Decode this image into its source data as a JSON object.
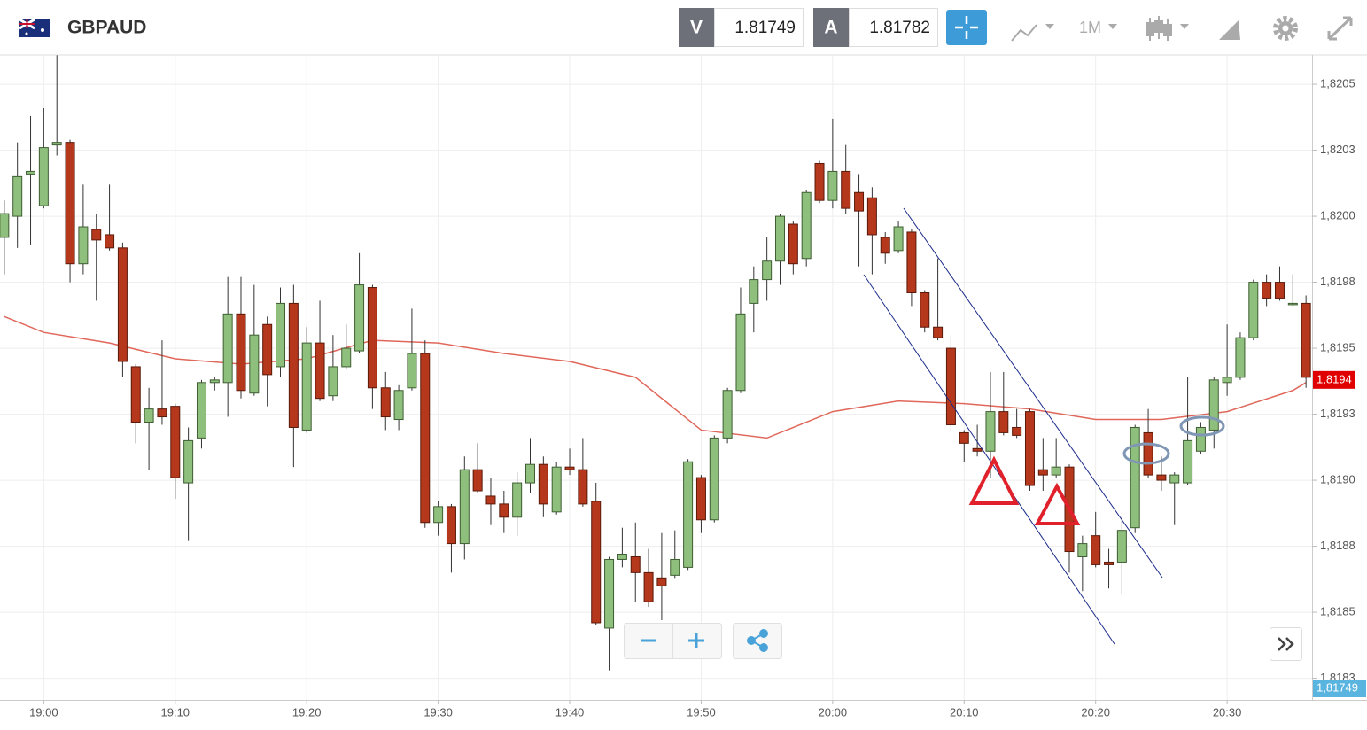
{
  "header": {
    "symbol": "GBPAUD",
    "bid_label": "V",
    "bid": "1.81749",
    "ask_label": "A",
    "ask": "1.81782",
    "timeframe": "1M"
  },
  "chart_data": {
    "type": "candlestick",
    "x": [
      "18:57",
      "18:58",
      "18:59",
      "19:00",
      "19:01",
      "19:02",
      "19:03",
      "19:04",
      "19:05",
      "19:06",
      "19:07",
      "19:08",
      "19:09",
      "19:10",
      "19:11",
      "19:12",
      "19:13",
      "19:14",
      "19:15",
      "19:16",
      "19:17",
      "19:18",
      "19:19",
      "19:20",
      "19:21",
      "19:22",
      "19:23",
      "19:24",
      "19:25",
      "19:26",
      "19:27",
      "19:28",
      "19:29",
      "19:30",
      "19:31",
      "19:32",
      "19:33",
      "19:34",
      "19:35",
      "19:36",
      "19:37",
      "19:38",
      "19:39",
      "19:40",
      "19:41",
      "19:42",
      "19:43",
      "19:44",
      "19:45",
      "19:46",
      "19:47",
      "19:48",
      "19:49",
      "19:50",
      "19:51",
      "19:52",
      "19:53",
      "19:54",
      "19:55",
      "19:56",
      "19:57",
      "19:58",
      "19:59",
      "20:00",
      "20:01",
      "20:02",
      "20:03",
      "20:04",
      "20:05",
      "20:06",
      "20:07",
      "20:08",
      "20:09",
      "20:10",
      "20:11",
      "20:12",
      "20:13",
      "20:14",
      "20:15",
      "20:16",
      "20:17",
      "20:18",
      "20:19",
      "20:20",
      "20:21",
      "20:22",
      "20:23",
      "20:24",
      "20:25",
      "20:26",
      "20:27",
      "20:28",
      "20:29",
      "20:30",
      "20:31",
      "20:32",
      "20:33",
      "20:34",
      "20:35",
      "20:36"
    ],
    "open": [
      1.81992,
      1.82,
      1.82016,
      1.82004,
      1.82027,
      1.82028,
      1.81982,
      1.81995,
      1.81993,
      1.81988,
      1.81943,
      1.81922,
      1.81927,
      1.81928,
      1.81899,
      1.81916,
      1.81937,
      1.81937,
      1.81963,
      1.81933,
      1.81959,
      1.81943,
      1.81967,
      1.81919,
      1.81952,
      1.81932,
      1.81943,
      1.81949,
      1.81973,
      1.81935,
      1.81923,
      1.81935,
      1.81948,
      1.81884,
      1.8189,
      1.81876,
      1.81904,
      1.81894,
      1.81891,
      1.81886,
      1.81899,
      1.81906,
      1.81888,
      1.81905,
      1.81904,
      1.81892,
      1.81844,
      1.8187,
      1.81871,
      1.81865,
      1.81863,
      1.81864,
      1.81867,
      1.81901,
      1.81885,
      1.81916,
      1.81934,
      1.81967,
      1.81976,
      1.81983,
      1.81997,
      1.81984,
      1.8202,
      1.82006,
      1.82017,
      1.82009,
      1.82007,
      1.81992,
      1.81987,
      1.81994,
      1.81971,
      1.81958,
      1.8195,
      1.81918,
      1.81912,
      1.81911,
      1.81926,
      1.8192,
      1.81926,
      1.81904,
      1.81902,
      1.81905,
      1.81871,
      1.81879,
      1.81869,
      1.81869,
      1.81882,
      1.81918,
      1.81902,
      1.81899,
      1.81899,
      1.81911,
      1.81919,
      1.81937,
      1.81939,
      1.81954,
      1.81975,
      1.81975,
      1.81967,
      1.81967
    ],
    "high": [
      1.82006,
      1.82028,
      1.82038,
      1.82041,
      1.82061,
      1.82029,
      1.82012,
      1.82001,
      1.82012,
      1.8199,
      1.81944,
      1.81935,
      1.81953,
      1.81929,
      1.8192,
      1.81938,
      1.81939,
      1.81977,
      1.81977,
      1.81974,
      1.81962,
      1.81973,
      1.81974,
      1.81958,
      1.81968,
      1.81955,
      1.81959,
      1.81986,
      1.81974,
      1.81941,
      1.81936,
      1.81965,
      1.81953,
      1.81892,
      1.81891,
      1.81909,
      1.81914,
      1.81901,
      1.81896,
      1.81903,
      1.81916,
      1.81909,
      1.81907,
      1.81912,
      1.81916,
      1.81899,
      1.81871,
      1.81882,
      1.81884,
      1.81874,
      1.8188,
      1.81881,
      1.81908,
      1.81902,
      1.81917,
      1.81935,
      1.81973,
      1.81981,
      1.81992,
      1.82001,
      1.81998,
      1.8201,
      1.82021,
      1.82037,
      1.82027,
      1.82016,
      1.82011,
      1.81994,
      1.81998,
      1.81995,
      1.81972,
      1.81984,
      1.81955,
      1.81919,
      1.81921,
      1.81941,
      1.81941,
      1.81927,
      1.81927,
      1.81916,
      1.81916,
      1.81906,
      1.81879,
      1.81888,
      1.81874,
      1.81886,
      1.81921,
      1.81927,
      1.81909,
      1.81903,
      1.81939,
      1.81922,
      1.81939,
      1.81959,
      1.81956,
      1.81976,
      1.81978,
      1.81981,
      1.81978,
      1.8197
    ],
    "low": [
      1.81978,
      1.81988,
      1.81989,
      1.82003,
      1.82023,
      1.81975,
      1.81978,
      1.81968,
      1.81987,
      1.81939,
      1.81914,
      1.81904,
      1.81921,
      1.81893,
      1.81877,
      1.81912,
      1.81934,
      1.81924,
      1.81931,
      1.81932,
      1.81928,
      1.81939,
      1.81905,
      1.81918,
      1.8193,
      1.8193,
      1.81942,
      1.81948,
      1.81927,
      1.81919,
      1.81919,
      1.81934,
      1.81882,
      1.81879,
      1.81865,
      1.8187,
      1.81895,
      1.81883,
      1.8188,
      1.81879,
      1.81895,
      1.81886,
      1.81887,
      1.81902,
      1.8189,
      1.81845,
      1.81828,
      1.81867,
      1.81854,
      1.81852,
      1.81847,
      1.81863,
      1.81866,
      1.8188,
      1.81884,
      1.81914,
      1.81933,
      1.81956,
      1.81968,
      1.81974,
      1.81978,
      1.81981,
      1.82005,
      1.82003,
      1.82001,
      1.81981,
      1.81978,
      1.81982,
      1.81986,
      1.81966,
      1.81956,
      1.81953,
      1.81919,
      1.81907,
      1.81909,
      1.81901,
      1.81917,
      1.81916,
      1.81896,
      1.81896,
      1.81901,
      1.81865,
      1.81858,
      1.81867,
      1.81859,
      1.81857,
      1.8188,
      1.81901,
      1.81896,
      1.81883,
      1.81898,
      1.8191,
      1.81912,
      1.81932,
      1.81938,
      1.81953,
      1.81966,
      1.81968,
      1.81966,
      1.81935
    ],
    "close": [
      1.82001,
      1.82015,
      1.82017,
      1.82026,
      1.82028,
      1.81982,
      1.81996,
      1.81991,
      1.81988,
      1.81945,
      1.81922,
      1.81927,
      1.81924,
      1.81901,
      1.81915,
      1.81937,
      1.81938,
      1.81963,
      1.81934,
      1.81955,
      1.8194,
      1.81967,
      1.8192,
      1.81952,
      1.81931,
      1.81943,
      1.8195,
      1.81974,
      1.81935,
      1.81924,
      1.81934,
      1.81948,
      1.81884,
      1.8189,
      1.81876,
      1.81904,
      1.81896,
      1.81891,
      1.81886,
      1.81899,
      1.81906,
      1.81891,
      1.81905,
      1.81904,
      1.81891,
      1.81846,
      1.8187,
      1.81872,
      1.81865,
      1.81854,
      1.8186,
      1.8187,
      1.81907,
      1.81885,
      1.81916,
      1.81934,
      1.81963,
      1.81976,
      1.81983,
      1.82,
      1.81982,
      1.82009,
      1.82006,
      1.82017,
      1.82003,
      1.82002,
      1.81993,
      1.81986,
      1.81996,
      1.81971,
      1.81958,
      1.81954,
      1.81921,
      1.81914,
      1.81911,
      1.81926,
      1.81918,
      1.81917,
      1.81898,
      1.81902,
      1.81905,
      1.81873,
      1.81876,
      1.81868,
      1.81868,
      1.81881,
      1.8192,
      1.81902,
      1.819,
      1.81902,
      1.81915,
      1.8192,
      1.81938,
      1.81939,
      1.81954,
      1.81975,
      1.81969,
      1.81969,
      1.81967,
      1.81939
    ],
    "up_color": "#8fbf7c",
    "up_edge": "#3f5e33",
    "down_color": "#b5371c",
    "down_edge": "#5a1a0a",
    "moving_average": {
      "color": "#e0675a",
      "x": [
        "18:57",
        "19:00",
        "19:05",
        "19:10",
        "19:15",
        "19:20",
        "19:25",
        "19:30",
        "19:35",
        "19:40",
        "19:45",
        "19:50",
        "19:55",
        "20:00",
        "20:05",
        "20:10",
        "20:15",
        "20:20",
        "20:25",
        "20:30",
        "20:35",
        "20:36"
      ],
      "values": [
        1.81962,
        1.81956,
        1.81952,
        1.81946,
        1.81944,
        1.81946,
        1.81953,
        1.81952,
        1.81948,
        1.81945,
        1.81939,
        1.81919,
        1.81916,
        1.81926,
        1.8193,
        1.81929,
        1.81927,
        1.81923,
        1.81923,
        1.81926,
        1.81934,
        1.81937
      ]
    },
    "xlim": [
      "18:56",
      "20:37"
    ],
    "xticks": [
      "19:00",
      "19:10",
      "19:20",
      "19:30",
      "19:40",
      "19:50",
      "20:00",
      "20:10",
      "20:20",
      "20:30"
    ],
    "ylim": [
      1.818168,
      1.820611
    ],
    "yticks": [
      {
        "value": 1.8205,
        "label": "1,8205"
      },
      {
        "value": 1.82025,
        "label": "1,8203"
      },
      {
        "value": 1.82,
        "label": "1,8200"
      },
      {
        "value": 1.81975,
        "label": "1,8198"
      },
      {
        "value": 1.8195,
        "label": "1,8195"
      },
      {
        "value": 1.81925,
        "label": "1,8193"
      },
      {
        "value": 1.819,
        "label": "1,8190"
      },
      {
        "value": 1.81875,
        "label": "1,8188"
      },
      {
        "value": 1.8185,
        "label": "1,8185"
      },
      {
        "value": 1.81825,
        "label": "1,8183"
      }
    ],
    "grid": true,
    "price_tags": [
      {
        "value": 1.81938,
        "label": "1,8194",
        "color": "#e00000"
      },
      {
        "value": 1.81749,
        "label": "1,81749",
        "color": "#5ab4e0"
      }
    ]
  }
}
